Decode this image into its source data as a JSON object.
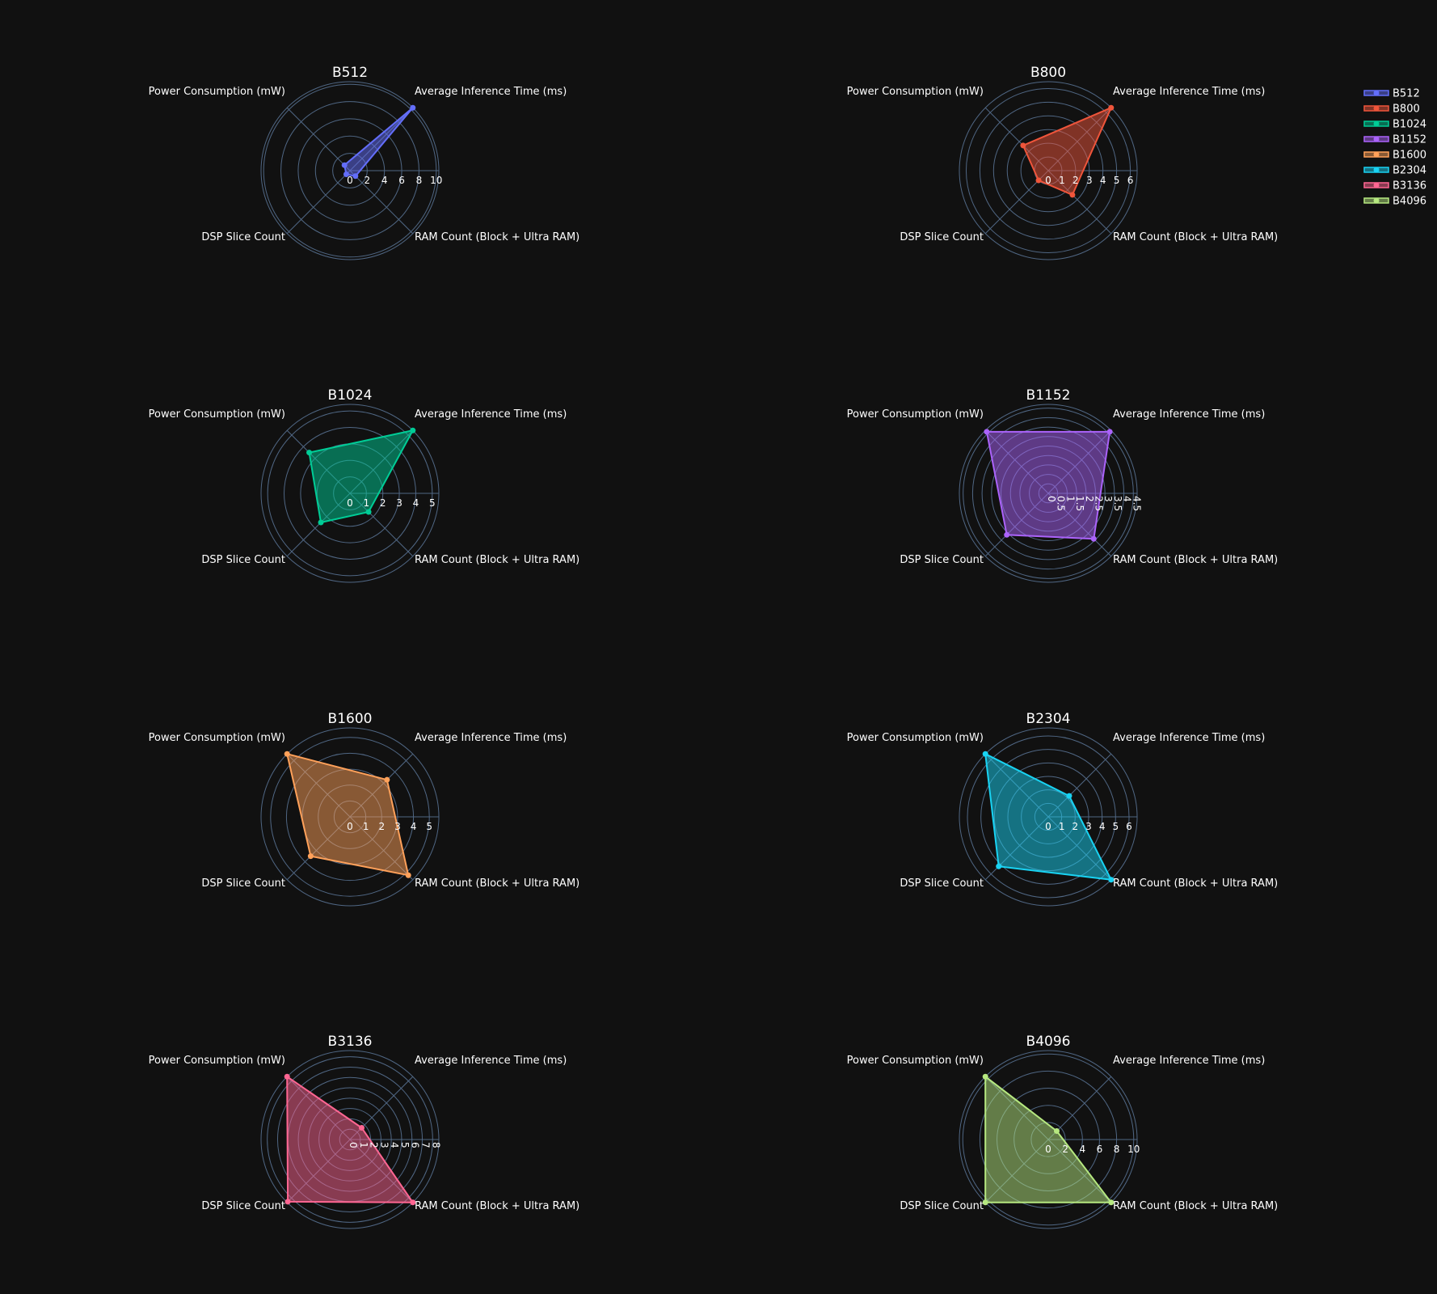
{
  "chart_data": {
    "type": "radar",
    "axes": [
      "Average Inference Time (ms)",
      "Power Consumption (mW)",
      "DSP Slice Count",
      "RAM Count (Block + Ultra RAM)"
    ],
    "legend_position": "top-right",
    "grid": true,
    "series": [
      {
        "name": "B512",
        "color": "#636efa",
        "values": [
          10.3,
          0.9,
          0.6,
          0.9
        ],
        "range": [
          0,
          10.3
        ],
        "ticks": [
          "0",
          "2",
          "4",
          "6",
          "8",
          "10"
        ]
      },
      {
        "name": "B800",
        "color": "#ef553b",
        "values": [
          6.5,
          2.6,
          1.0,
          2.5
        ],
        "range": [
          0,
          6.5
        ],
        "ticks": [
          "0",
          "1",
          "2",
          "3",
          "4",
          "5",
          "6"
        ]
      },
      {
        "name": "B1024",
        "color": "#00cc96",
        "values": [
          5.4,
          3.5,
          2.5,
          1.6
        ],
        "range": [
          0,
          5.4
        ],
        "ticks": [
          "0",
          "1",
          "2",
          "3",
          "4",
          "5"
        ]
      },
      {
        "name": "B1152",
        "color": "#ab63fa",
        "values": [
          4.6,
          4.6,
          3.1,
          3.4
        ],
        "range": [
          0,
          4.7
        ],
        "ticks": [
          "0",
          "0.5",
          "1",
          "1.5",
          "2",
          "2.5",
          "3",
          "3.5",
          "4",
          "4.5"
        ]
      },
      {
        "name": "B1600",
        "color": "#ffa15a",
        "values": [
          3.3,
          5.6,
          3.5,
          5.2
        ],
        "range": [
          0,
          5.6
        ],
        "ticks": [
          "0",
          "1",
          "2",
          "3",
          "4",
          "5"
        ]
      },
      {
        "name": "B2304",
        "color": "#19d3f3",
        "values": [
          2.2,
          6.6,
          5.2,
          6.6
        ],
        "range": [
          0,
          6.6
        ],
        "ticks": [
          "0",
          "1",
          "2",
          "3",
          "4",
          "5",
          "6"
        ]
      },
      {
        "name": "B3136",
        "color": "#ff6692",
        "values": [
          1.6,
          8.6,
          8.5,
          8.6
        ],
        "range": [
          0,
          8.6
        ],
        "ticks": [
          "0",
          "1",
          "2",
          "3",
          "4",
          "5",
          "6",
          "7",
          "8"
        ]
      },
      {
        "name": "B4096",
        "color": "#b6e880",
        "values": [
          1.4,
          10.4,
          10.4,
          10.4
        ],
        "range": [
          0,
          10.4
        ],
        "ticks": [
          "0",
          "2",
          "4",
          "6",
          "8",
          "10"
        ]
      }
    ]
  }
}
